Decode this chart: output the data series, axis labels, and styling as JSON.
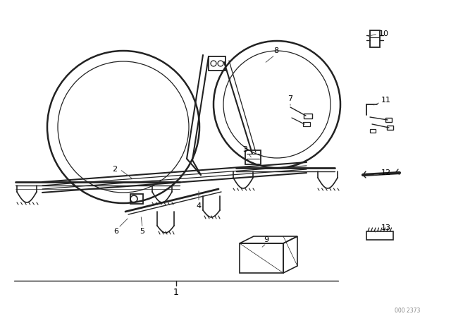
{
  "background_color": "#ffffff",
  "line_color": "#222222",
  "part_number_text": "000 2373",
  "figure_width": 6.4,
  "figure_height": 4.48,
  "dpi": 100
}
